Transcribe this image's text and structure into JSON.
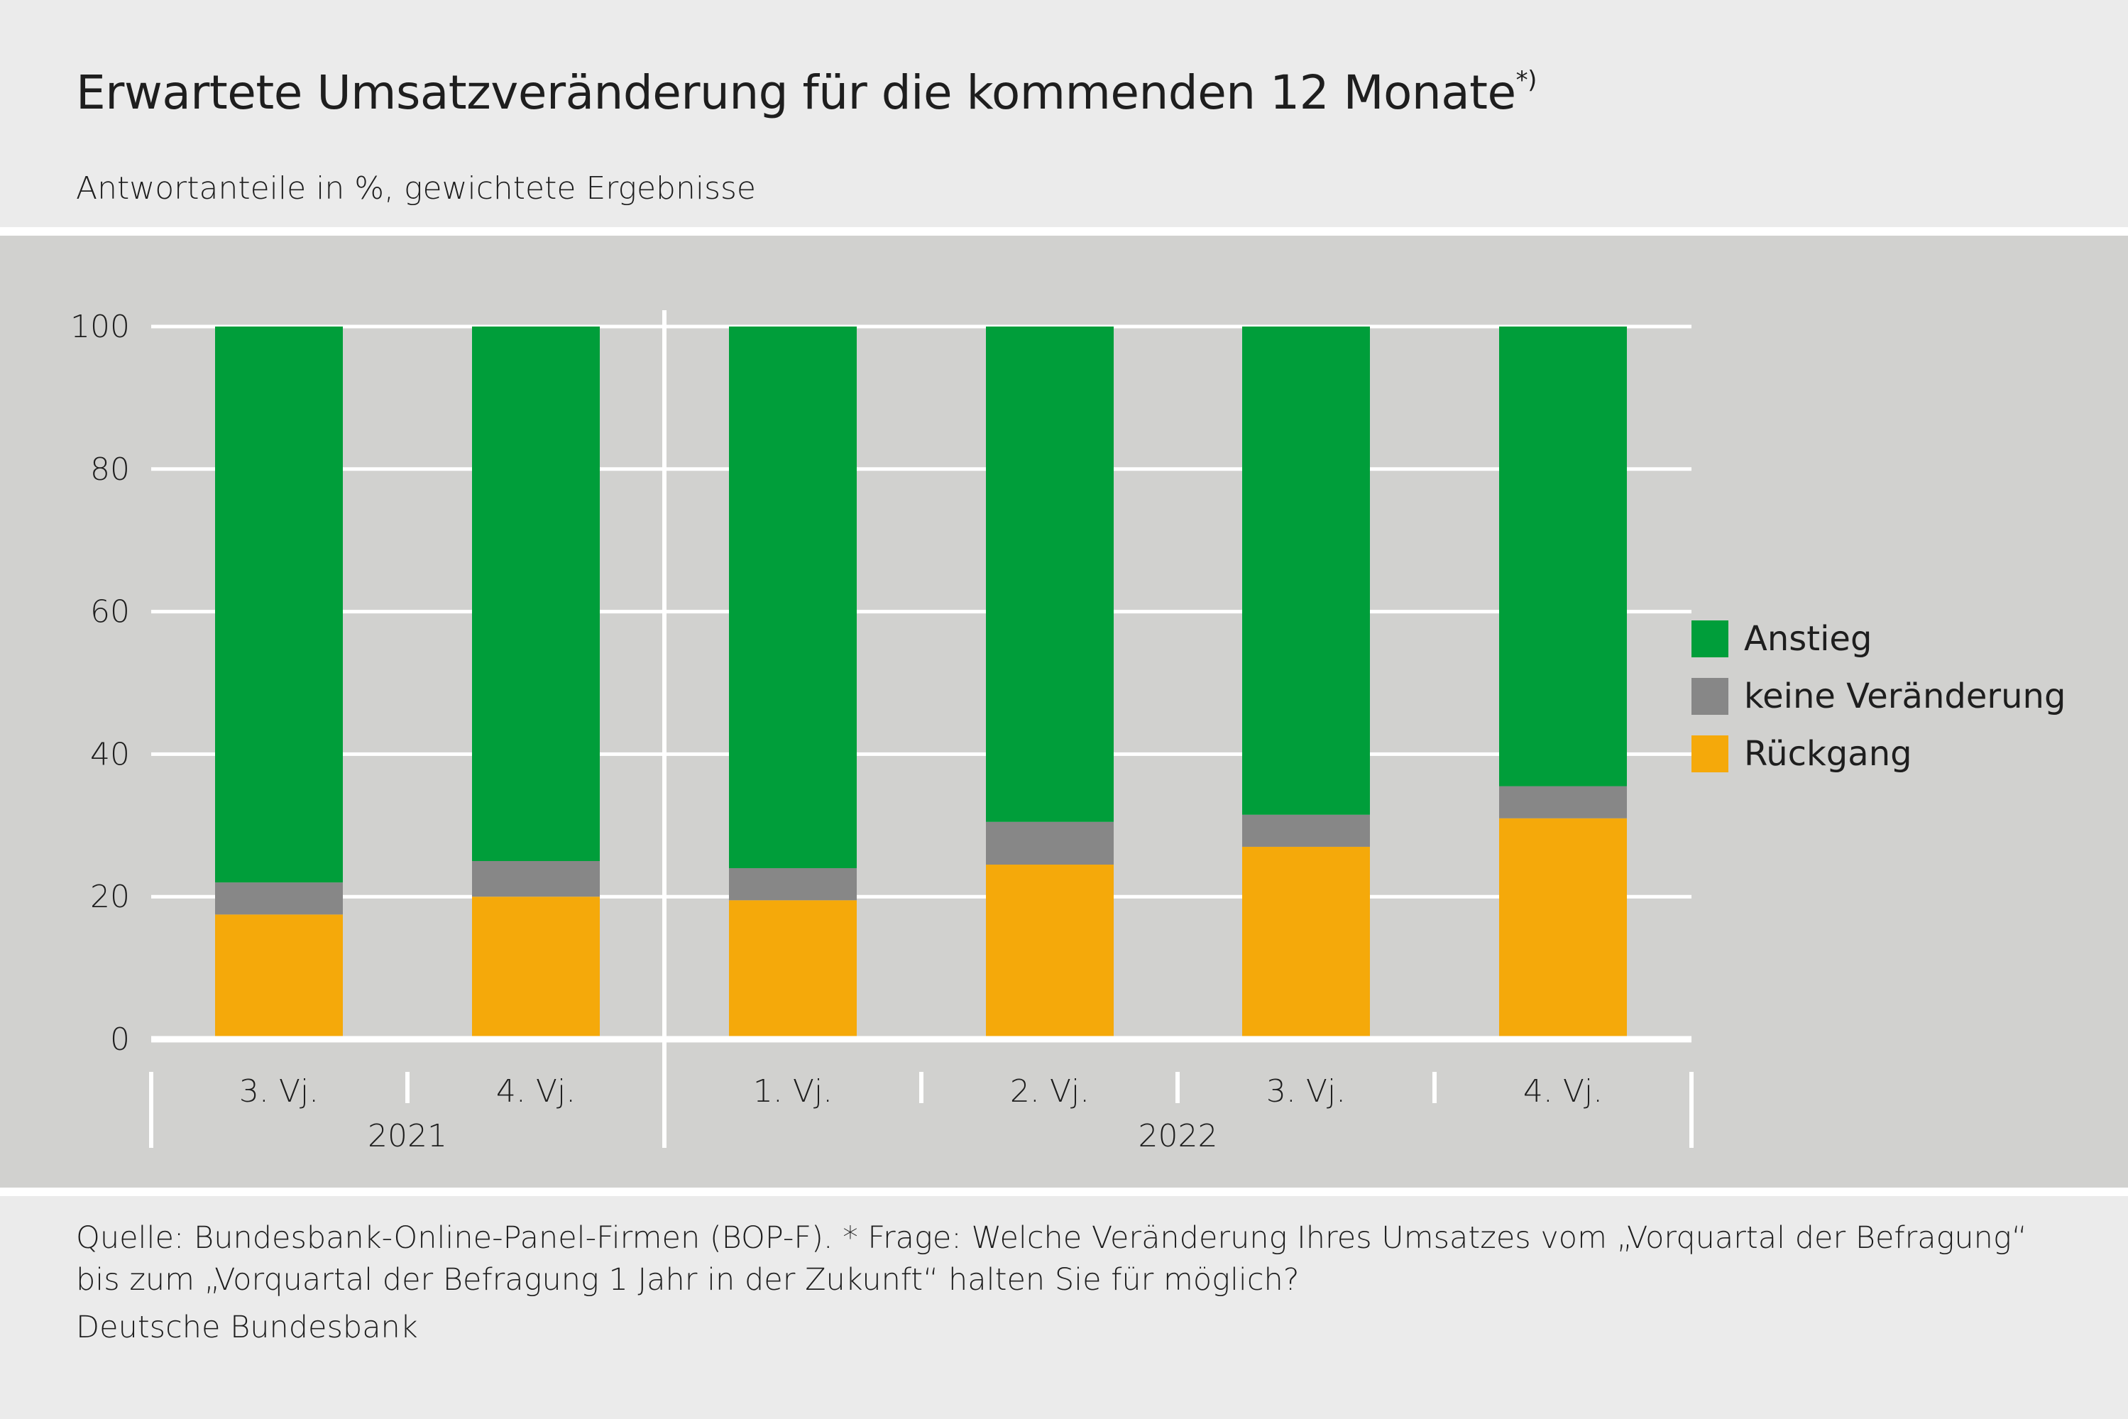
{
  "header": {
    "title": "Erwartete Umsatzveränderung für die kommenden 12 Monate",
    "title_sup": "*)",
    "subtitle": "Antwortanteile in %, gewichtete Ergebnisse"
  },
  "footer": {
    "source": "Quelle: Bundesbank-Online-Panel-Firmen (BOP-F). * Frage: Welche Veränderung Ihres Umsatzes vom „Vorquartal der Befragung“ bis zum „Vorquartal der Befragung 1 Jahr in der Zukunft“ halten Sie für möglich?",
    "publisher": "Deutsche Bundesbank"
  },
  "chart_data": {
    "type": "bar",
    "stacked": true,
    "categories": [
      "3. Vj.",
      "4. Vj.",
      "1. Vj.",
      "2. Vj.",
      "3. Vj.",
      "4. Vj."
    ],
    "groups": [
      {
        "label": "2021",
        "categories": [
          0,
          1
        ]
      },
      {
        "label": "2022",
        "categories": [
          2,
          3,
          4,
          5
        ]
      }
    ],
    "series": [
      {
        "name": "Rückgang",
        "color": "#f5a90a",
        "values": [
          17.5,
          20.0,
          19.5,
          24.5,
          27.0,
          31.0
        ]
      },
      {
        "name": "keine Veränderung",
        "color": "#878787",
        "values": [
          4.5,
          5.0,
          4.5,
          6.0,
          4.5,
          4.5
        ]
      },
      {
        "name": "Anstieg",
        "color": "#009e3a",
        "values": [
          78.0,
          75.0,
          76.0,
          69.5,
          68.5,
          64.5
        ]
      }
    ],
    "legend_order": [
      "Anstieg",
      "keine Veränderung",
      "Rückgang"
    ],
    "legend_position": "right",
    "ylim": [
      0,
      100
    ],
    "yticks": [
      0,
      20,
      40,
      60,
      80,
      100
    ],
    "grid": true,
    "xlabel": "",
    "ylabel": ""
  }
}
